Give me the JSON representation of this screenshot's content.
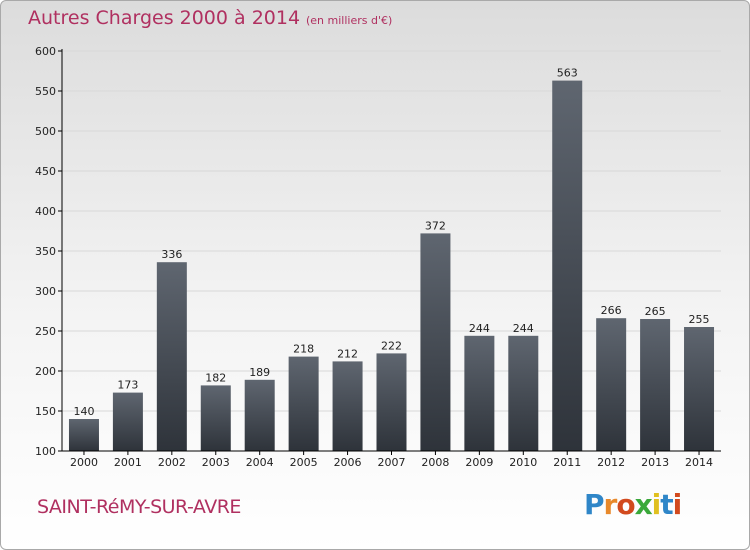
{
  "title": "Autres Charges 2000 à 2014",
  "subtitle": "(en milliers d'€)",
  "town": "SAINT-RéMY-SUR-AVRE",
  "logo": {
    "text": "Proxiti",
    "letter_colors": [
      "#2f86c8",
      "#e8892b",
      "#d24a1e",
      "#3aa83a",
      "#e0c020",
      "#2f86c8",
      "#d24a1e"
    ]
  },
  "colors": {
    "title": "#b03060",
    "bar_top": "#5f6670",
    "bar_bottom": "#2e333a",
    "axis": "#000000",
    "grid": "#d8d8d8"
  },
  "chart_data": {
    "type": "bar",
    "categories": [
      "2000",
      "2001",
      "2002",
      "2003",
      "2004",
      "2005",
      "2006",
      "2007",
      "2008",
      "2009",
      "2010",
      "2011",
      "2012",
      "2013",
      "2014"
    ],
    "values": [
      140,
      173,
      336,
      182,
      189,
      218,
      212,
      222,
      372,
      244,
      244,
      563,
      266,
      265,
      255
    ],
    "ylim": [
      100,
      600
    ],
    "yticks": [
      100,
      150,
      200,
      250,
      300,
      350,
      400,
      450,
      500,
      550,
      600
    ],
    "grid": true,
    "title": "Autres Charges 2000 à 2014",
    "xlabel": "",
    "ylabel": ""
  }
}
